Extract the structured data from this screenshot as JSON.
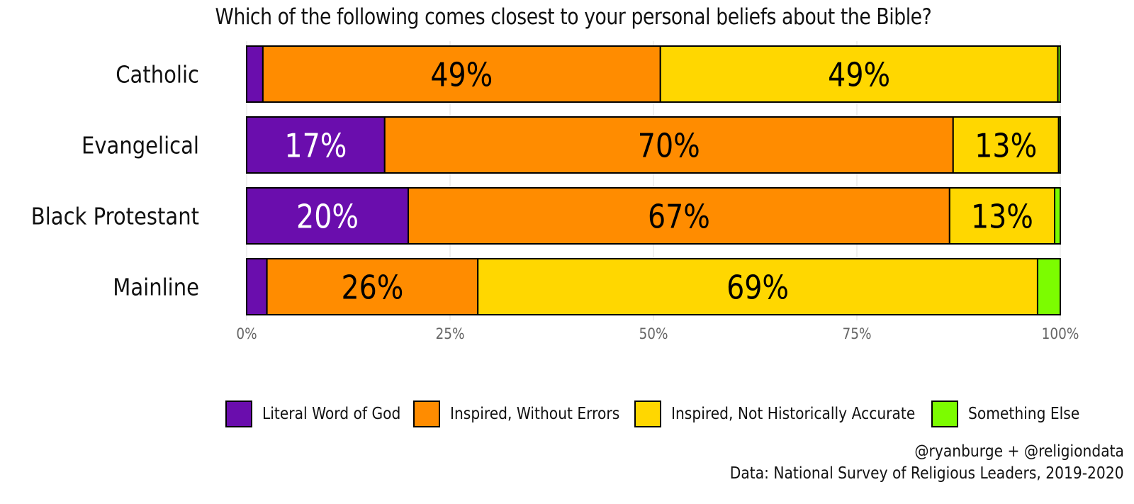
{
  "chart_data": {
    "type": "bar",
    "orientation": "horizontal",
    "stacked": true,
    "title": "Which of the following comes closest to your personal beliefs about the Bible?",
    "categories": [
      "Catholic",
      "Evangelical",
      "Black Protestant",
      "Mainline"
    ],
    "series": [
      {
        "name": "Literal Word of God",
        "color": "#6a0dad",
        "values": [
          2,
          17,
          20,
          2.5
        ]
      },
      {
        "name": "Inspired, Without Errors",
        "color": "#ff8c00",
        "values": [
          49,
          70,
          67,
          26
        ]
      },
      {
        "name": "Inspired, Not Historically Accurate",
        "color": "#ffd700",
        "values": [
          49,
          13,
          13,
          69
        ]
      },
      {
        "name": "Something Else",
        "color": "#7cfc00",
        "values": [
          0.3,
          0.2,
          0.7,
          2.8
        ]
      }
    ],
    "value_labels": [
      [
        "",
        "49%",
        "49%",
        ""
      ],
      [
        "17%",
        "70%",
        "13%",
        ""
      ],
      [
        "20%",
        "67%",
        "13%",
        ""
      ],
      [
        "",
        "26%",
        "69%",
        ""
      ]
    ],
    "label_colors": [
      "#ffffff",
      "#000000",
      "#000000",
      "#000000"
    ],
    "xlim": [
      0,
      100
    ],
    "xticks": [
      0,
      25,
      50,
      75,
      100
    ],
    "xtick_labels": [
      "0%",
      "25%",
      "50%",
      "75%",
      "100%"
    ],
    "xlabel": "",
    "ylabel": "",
    "grid": true,
    "legend_position": "bottom",
    "caption": [
      "@ryanburge + @religiondata",
      "Data: National Survey of Religious Leaders, 2019-2020"
    ]
  }
}
